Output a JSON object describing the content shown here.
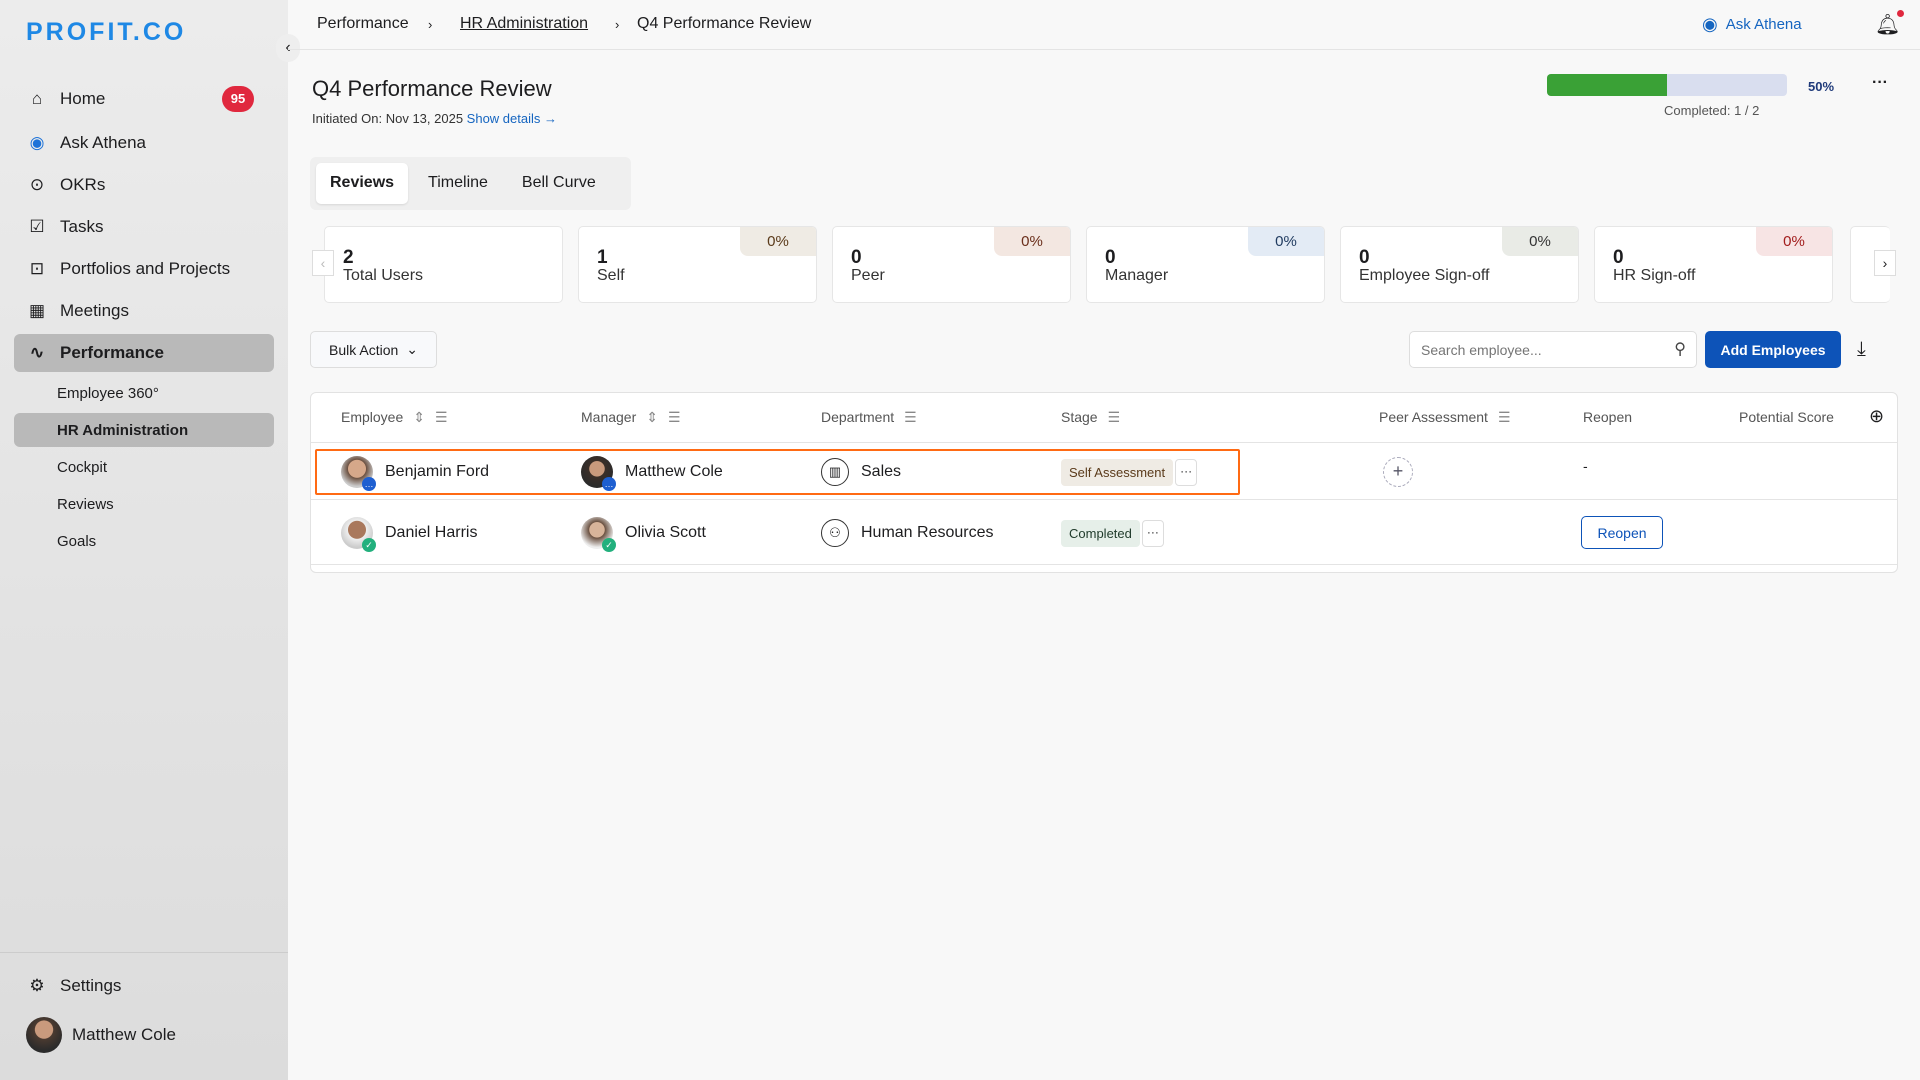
{
  "brand": {
    "logo": "PROFIT.CO"
  },
  "sidebar": {
    "items": [
      {
        "label": "Home",
        "icon": "home-icon",
        "glyph": "⌂",
        "badge": "95"
      },
      {
        "label": "Ask Athena",
        "icon": "athena-icon",
        "glyph": "◉"
      },
      {
        "label": "OKRs",
        "icon": "target-icon",
        "glyph": "⊙"
      },
      {
        "label": "Tasks",
        "icon": "clipboard-check-icon",
        "glyph": "☑"
      },
      {
        "label": "Portfolios and Projects",
        "icon": "briefcase-icon",
        "glyph": "⊡"
      },
      {
        "label": "Meetings",
        "icon": "calendar-icon",
        "glyph": "▦"
      },
      {
        "label": "Performance",
        "icon": "chart-line-icon",
        "glyph": "∿"
      }
    ],
    "sub_items": [
      "Employee 360°",
      "HR Administration",
      "Cockpit",
      "Reviews",
      "Goals"
    ],
    "settings": "Settings",
    "user": "Matthew Cole"
  },
  "breadcrumb": [
    "Performance",
    "HR Administration",
    "Q4 Performance Review"
  ],
  "topbar": {
    "ask_athena": "Ask Athena"
  },
  "page": {
    "title": "Q4 Performance Review",
    "initiated": "Initiated On: Nov 13, 2025",
    "show_details": "Show details →",
    "progress_percent": 50,
    "progress_label": "50%",
    "completed": "Completed: 1 / 2"
  },
  "tabs": [
    "Reviews",
    "Timeline",
    "Bell Curve"
  ],
  "cards": [
    {
      "num": "2",
      "label": "Total Users"
    },
    {
      "num": "1",
      "label": "Self",
      "pct": "0%",
      "bg": "#efebe4",
      "color": "#5a3a1a"
    },
    {
      "num": "0",
      "label": "Peer",
      "pct": "0%",
      "bg": "#f3e7e1",
      "color": "#6a2e1a"
    },
    {
      "num": "0",
      "label": "Manager",
      "pct": "0%",
      "bg": "#e3ebf5",
      "color": "#1f3a5f"
    },
    {
      "num": "0",
      "label": "Employee Sign-off",
      "pct": "0%",
      "bg": "#e9ebe6",
      "color": "#333"
    },
    {
      "num": "0",
      "label": "HR Sign-off",
      "pct": "0%",
      "bg": "#f7e4e4",
      "color": "#a21c1c"
    }
  ],
  "toolbar": {
    "bulk_action": "Bulk Action",
    "search_placeholder": "Search employee...",
    "add_employees": "Add Employees"
  },
  "table": {
    "columns": [
      "Employee",
      "Manager",
      "Department",
      "Stage",
      "Peer Assessment",
      "Reopen",
      "Potential Score"
    ],
    "rows": [
      {
        "employee": "Benjamin Ford",
        "manager": "Matthew Cole",
        "department": "Sales",
        "stage": "Self Assessment",
        "reopen": "-"
      },
      {
        "employee": "Daniel Harris",
        "manager": "Olivia Scott",
        "department": "Human Resources",
        "stage": "Completed",
        "reopen": "Reopen"
      }
    ]
  },
  "colors": {
    "accent": "#0d53b8",
    "progress": "#3aa136",
    "highlight": "#ff6a13",
    "badge": "#e0283e"
  }
}
